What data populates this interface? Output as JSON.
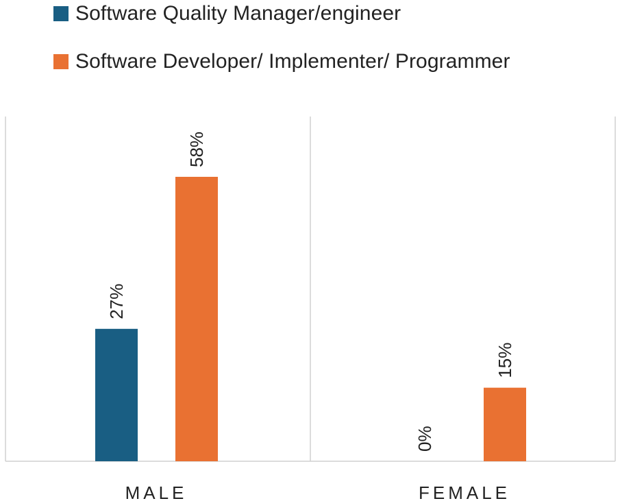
{
  "chart_data": {
    "type": "bar",
    "categories": [
      "MALE",
      "FEMALE"
    ],
    "series": [
      {
        "name": "Software Quality Manager/engineer",
        "values": [
          27,
          0
        ],
        "color": "#195E83"
      },
      {
        "name": "Software Developer/ Implementer/ Programmer",
        "values": [
          58,
          15
        ],
        "color": "#E97132"
      }
    ],
    "data_labels": [
      [
        "27%",
        "0%"
      ],
      [
        "58%",
        "15%"
      ]
    ],
    "value_unit": "%",
    "ylim": [
      0,
      70
    ],
    "grid": false,
    "legend_position": "top-left"
  }
}
